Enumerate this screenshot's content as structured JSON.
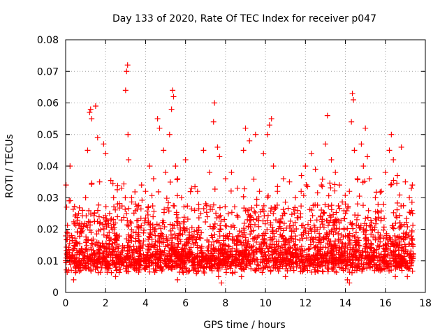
{
  "chart_data": {
    "type": "scatter",
    "title": "Day 133 of 2020, Rate Of TEC Index for receiver p047",
    "xlabel": "GPS time / hours",
    "ylabel": "ROTI / TECUs",
    "xlim": [
      0,
      18
    ],
    "ylim": [
      0,
      0.08
    ],
    "x_ticks": [
      0,
      2,
      4,
      6,
      8,
      10,
      12,
      14,
      16,
      18
    ],
    "x_tick_labels": [
      "0",
      "2",
      "4",
      "6",
      "8",
      "10",
      "12",
      "14",
      "16",
      "18"
    ],
    "y_ticks": [
      0,
      0.01,
      0.02,
      0.03,
      0.04,
      0.05,
      0.06,
      0.07,
      0.08
    ],
    "y_tick_labels": [
      "0",
      "0.01",
      "0.02",
      "0.03",
      "0.04",
      "0.05",
      "0.06",
      "0.07",
      "0.08"
    ],
    "grid": true,
    "marker": "+",
    "marker_color": "#ff0000",
    "series_x_range": [
      0,
      17.4
    ],
    "series": [
      {
        "name": "ROTI",
        "points": [
          [
            0.02,
            0.034
          ],
          [
            0.05,
            0.027
          ],
          [
            0.1,
            0.012
          ],
          [
            0.18,
            0.029
          ],
          [
            0.22,
            0.04
          ],
          [
            0.3,
            0.018
          ],
          [
            0.45,
            0.014
          ],
          [
            0.6,
            0.022
          ],
          [
            0.7,
            0.01
          ],
          [
            0.85,
            0.026
          ],
          [
            1.0,
            0.03
          ],
          [
            1.1,
            0.045
          ],
          [
            1.2,
            0.057
          ],
          [
            1.25,
            0.058
          ],
          [
            1.3,
            0.055
          ],
          [
            1.5,
            0.059
          ],
          [
            1.6,
            0.049
          ],
          [
            1.7,
            0.035
          ],
          [
            1.9,
            0.047
          ],
          [
            2.0,
            0.044
          ],
          [
            2.2,
            0.025
          ],
          [
            2.4,
            0.03
          ],
          [
            2.6,
            0.028
          ],
          [
            2.8,
            0.033
          ],
          [
            3.0,
            0.064
          ],
          [
            3.05,
            0.07
          ],
          [
            3.1,
            0.072
          ],
          [
            3.12,
            0.05
          ],
          [
            3.15,
            0.042
          ],
          [
            3.3,
            0.03
          ],
          [
            3.5,
            0.028
          ],
          [
            3.8,
            0.034
          ],
          [
            4.0,
            0.032
          ],
          [
            4.2,
            0.04
          ],
          [
            4.4,
            0.036
          ],
          [
            4.6,
            0.055
          ],
          [
            4.7,
            0.052
          ],
          [
            4.9,
            0.045
          ],
          [
            5.0,
            0.038
          ],
          [
            5.2,
            0.05
          ],
          [
            5.3,
            0.058
          ],
          [
            5.35,
            0.064
          ],
          [
            5.4,
            0.062
          ],
          [
            5.5,
            0.04
          ],
          [
            5.6,
            0.036
          ],
          [
            5.8,
            0.03
          ],
          [
            6.0,
            0.042
          ],
          [
            6.3,
            0.033
          ],
          [
            6.6,
            0.032
          ],
          [
            6.9,
            0.045
          ],
          [
            7.2,
            0.038
          ],
          [
            7.4,
            0.054
          ],
          [
            7.45,
            0.06
          ],
          [
            7.6,
            0.046
          ],
          [
            7.7,
            0.043
          ],
          [
            7.8,
            0.003
          ],
          [
            7.65,
            0.005
          ],
          [
            8.0,
            0.036
          ],
          [
            8.3,
            0.038
          ],
          [
            8.6,
            0.033
          ],
          [
            8.9,
            0.045
          ],
          [
            9.0,
            0.052
          ],
          [
            9.2,
            0.048
          ],
          [
            9.5,
            0.05
          ],
          [
            9.7,
            0.032
          ],
          [
            9.9,
            0.044
          ],
          [
            10.1,
            0.05
          ],
          [
            10.2,
            0.053
          ],
          [
            10.3,
            0.055
          ],
          [
            10.4,
            0.04
          ],
          [
            10.6,
            0.032
          ],
          [
            10.9,
            0.036
          ],
          [
            11.2,
            0.035
          ],
          [
            11.5,
            0.03
          ],
          [
            11.8,
            0.037
          ],
          [
            12.0,
            0.04
          ],
          [
            12.3,
            0.044
          ],
          [
            12.5,
            0.039
          ],
          [
            12.8,
            0.034
          ],
          [
            13.0,
            0.047
          ],
          [
            13.1,
            0.056
          ],
          [
            13.3,
            0.042
          ],
          [
            13.5,
            0.038
          ],
          [
            13.7,
            0.034
          ],
          [
            14.0,
            0.028
          ],
          [
            14.2,
            0.032
          ],
          [
            14.3,
            0.054
          ],
          [
            14.35,
            0.063
          ],
          [
            14.4,
            0.061
          ],
          [
            14.45,
            0.045
          ],
          [
            14.6,
            0.036
          ],
          [
            14.8,
            0.047
          ],
          [
            14.9,
            0.04
          ],
          [
            15.0,
            0.052
          ],
          [
            15.1,
            0.043
          ],
          [
            15.2,
            0.036
          ],
          [
            15.5,
            0.03
          ],
          [
            15.8,
            0.032
          ],
          [
            16.0,
            0.038
          ],
          [
            16.2,
            0.045
          ],
          [
            16.3,
            0.05
          ],
          [
            16.4,
            0.042
          ],
          [
            16.6,
            0.037
          ],
          [
            16.8,
            0.046
          ],
          [
            17.0,
            0.035
          ],
          [
            17.2,
            0.03
          ],
          [
            17.3,
            0.033
          ],
          [
            17.35,
            0.034
          ],
          [
            0.4,
            0.004
          ],
          [
            2.5,
            0.005
          ],
          [
            5.6,
            0.004
          ],
          [
            8.8,
            0.005
          ],
          [
            11.0,
            0.005
          ],
          [
            14.1,
            0.004
          ],
          [
            14.2,
            0.003
          ],
          [
            16.5,
            0.005
          ],
          [
            17.1,
            0.005
          ]
        ]
      }
    ]
  }
}
